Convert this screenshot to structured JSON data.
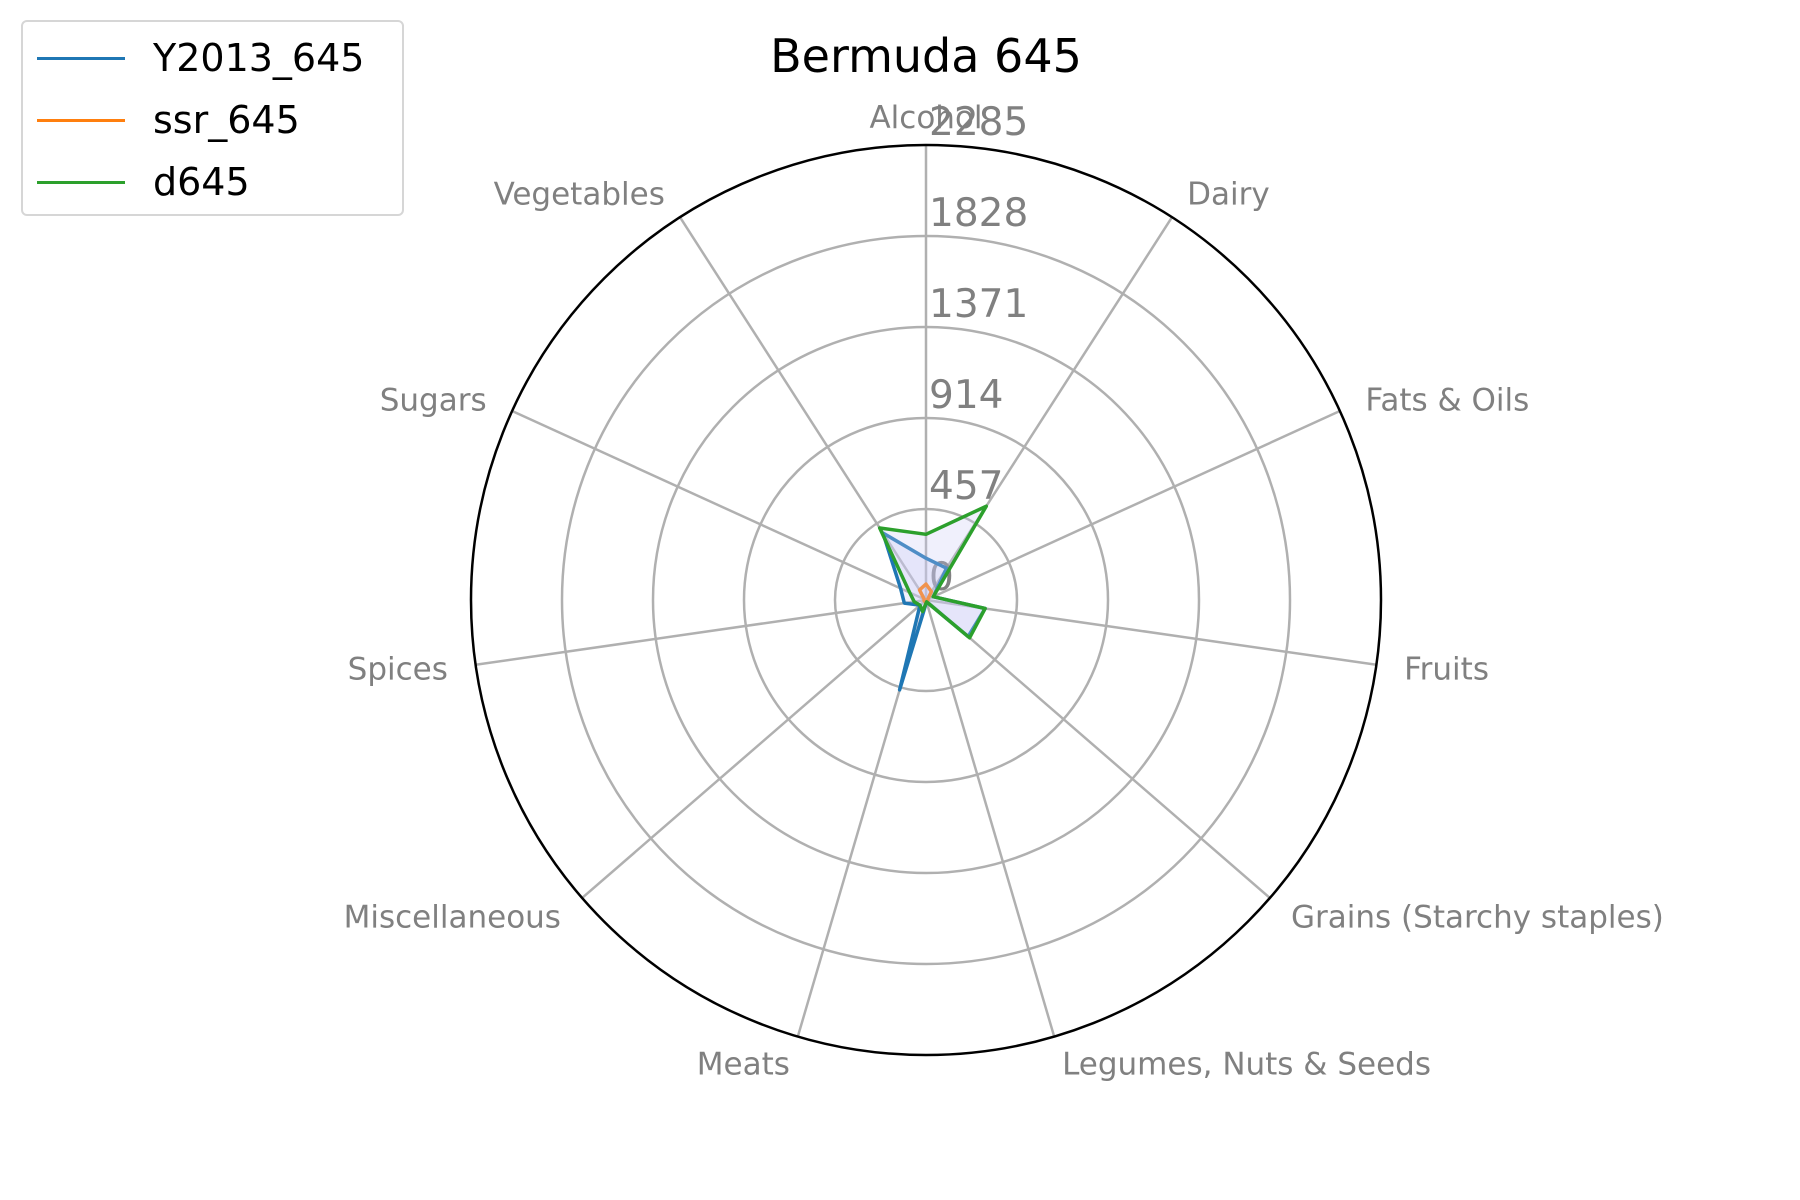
{
  "chart_data": {
    "type": "radar",
    "title": "Bermuda 645",
    "categories": [
      "Alcohol",
      "Dairy",
      "Fats & Oils",
      "Fruits",
      "Grains (Starchy staples)",
      "Legumes, Nuts & Seeds",
      "Meats",
      "Miscellaneous",
      "Spices",
      "Sugars",
      "Vegetables"
    ],
    "r_ticks": [
      "0",
      "457",
      "914",
      "1371",
      "1828",
      "2285"
    ],
    "r_max": 2285,
    "grid": true,
    "legend_position": "top-left",
    "fill_color": "#c8c8f5",
    "series": [
      {
        "name": "Y2013_645",
        "color": "#1f77b4",
        "values": [
          210,
          190,
          40,
          300,
          280,
          10,
          470,
          40,
          110,
          140,
          400
        ]
      },
      {
        "name": "ssr_645",
        "color": "#ff7f0e",
        "values": [
          80,
          50,
          10,
          10,
          10,
          10,
          10,
          10,
          10,
          10,
          60
        ]
      },
      {
        "name": "d645",
        "color": "#2ca02c",
        "values": [
          330,
          560,
          40,
          300,
          290,
          10,
          60,
          40,
          60,
          90,
          430
        ]
      }
    ]
  }
}
